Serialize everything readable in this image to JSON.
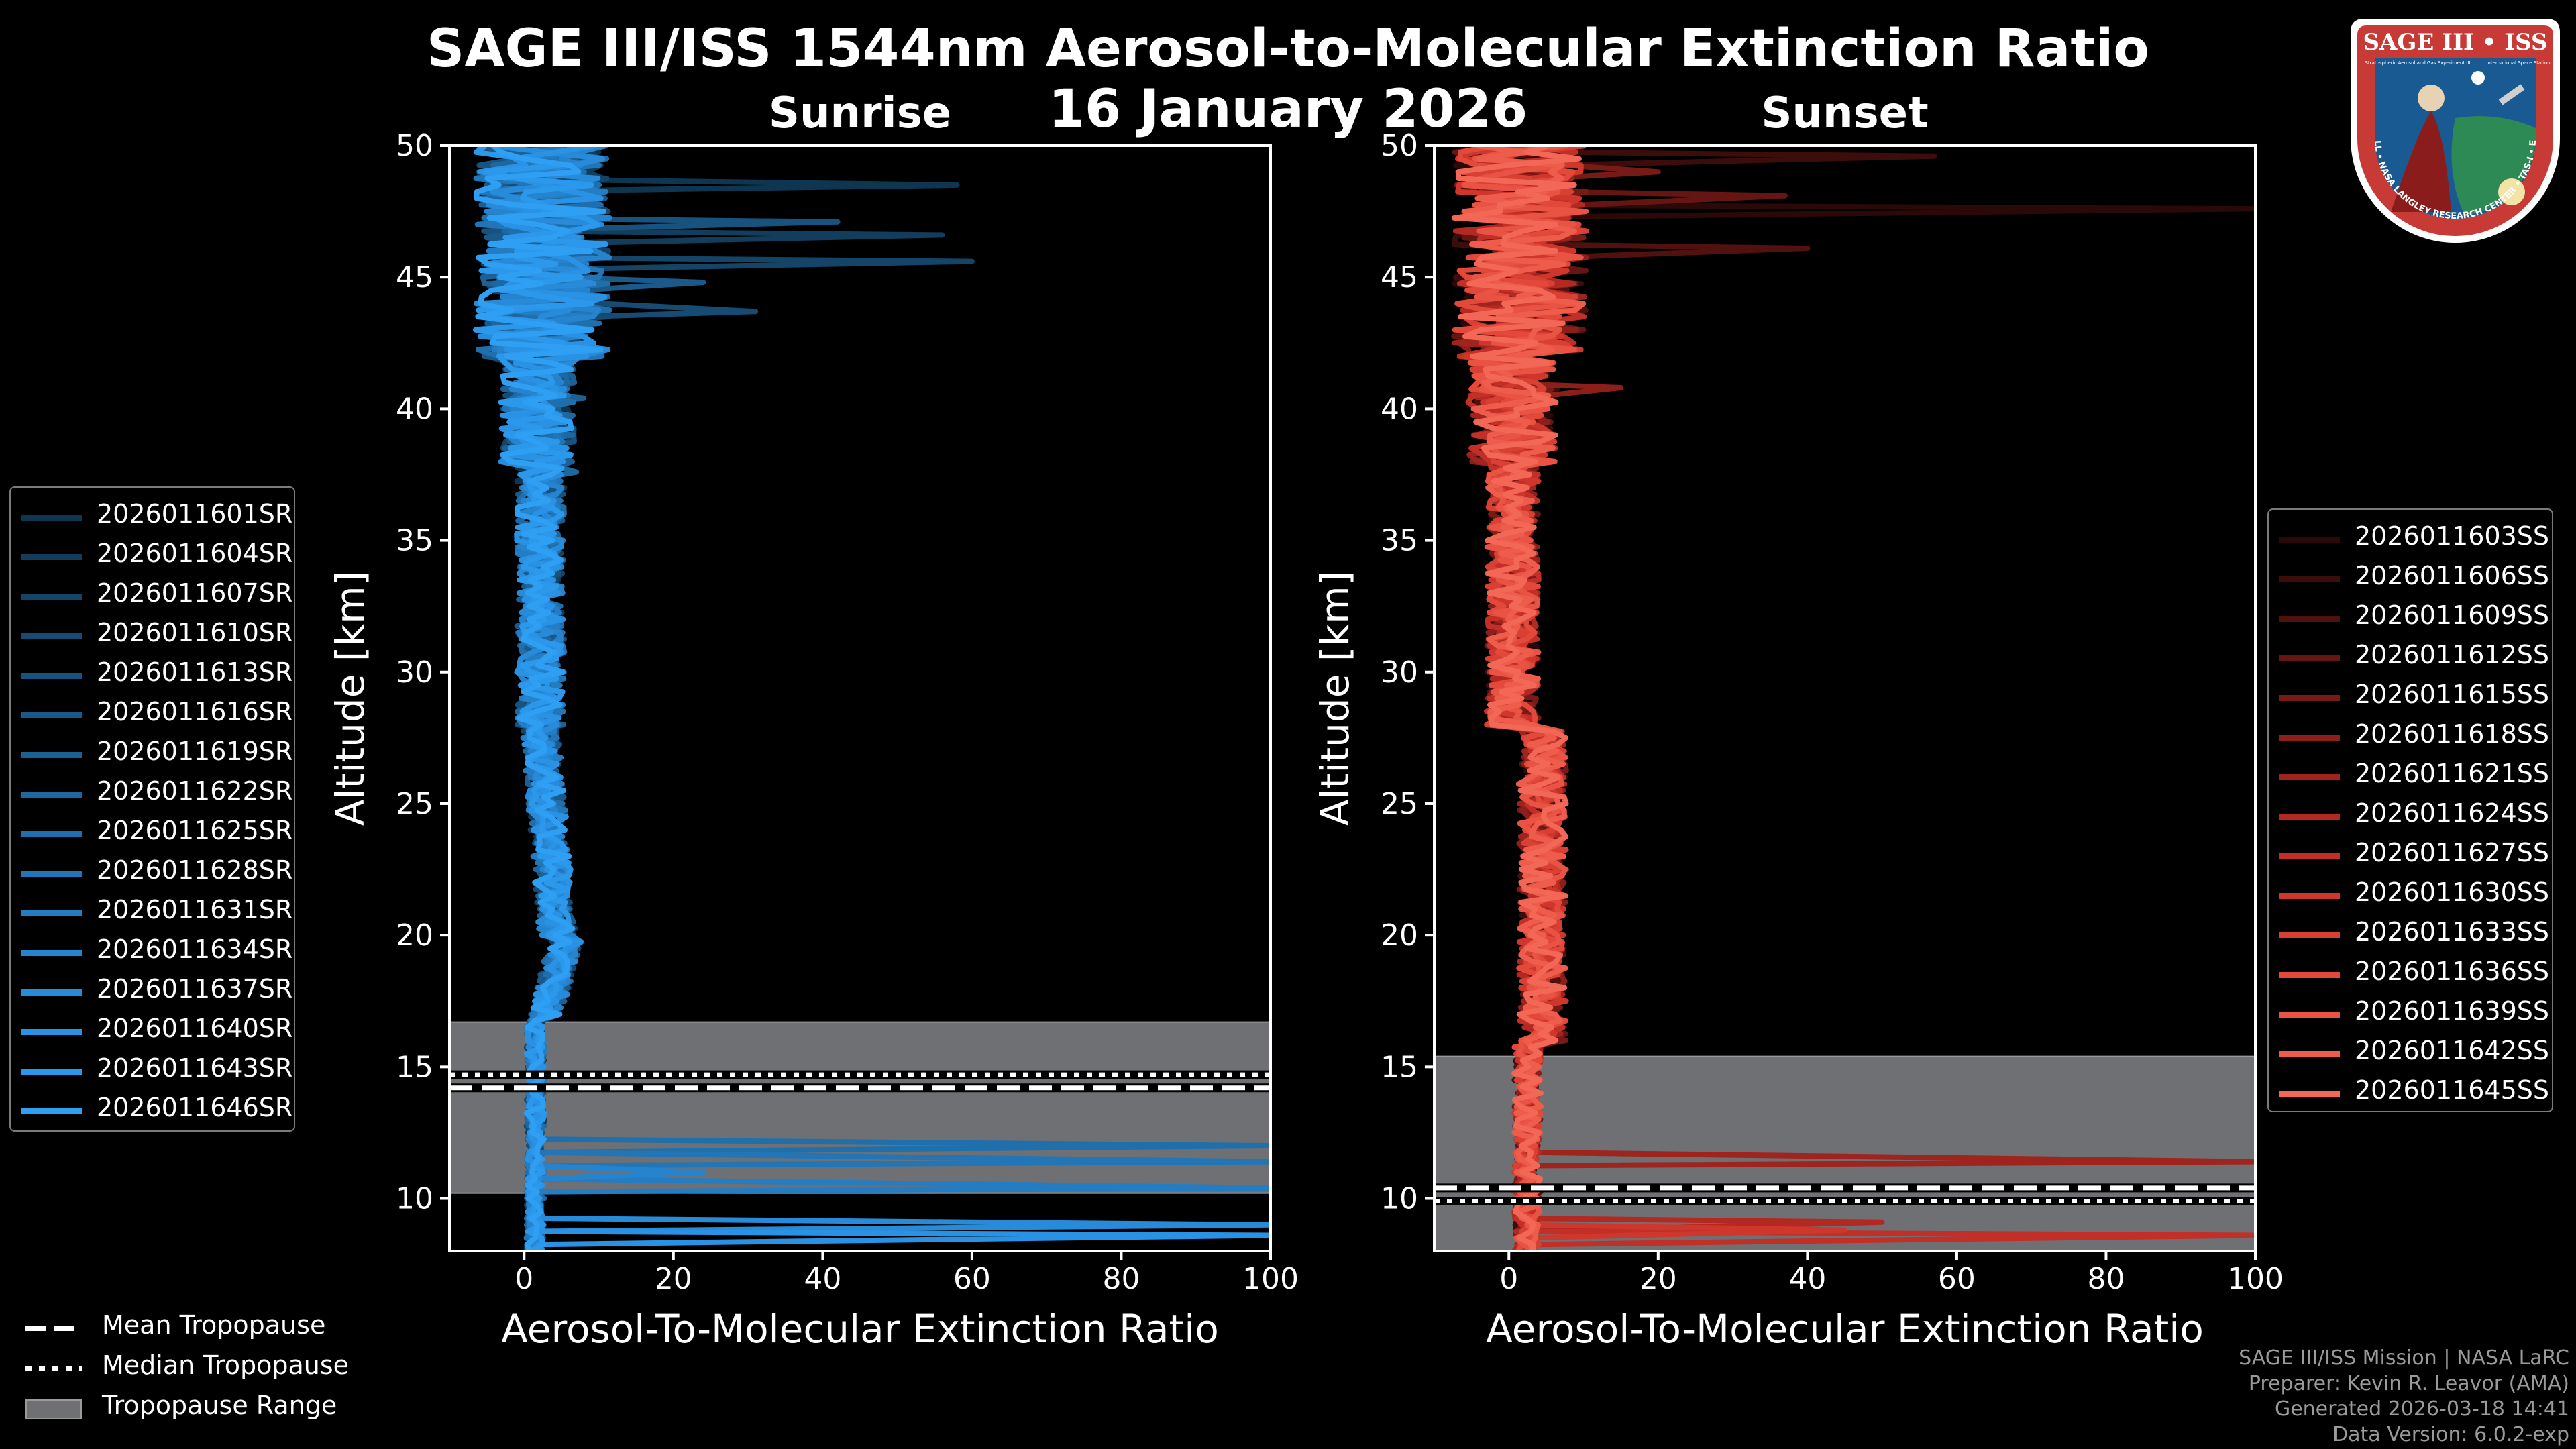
{
  "page": {
    "title": "SAGE III/ISS 1544nm Aerosol-to-Molecular Extinction Ratio",
    "date": "16 January 2026",
    "footer": [
      "SAGE III/ISS Mission | NASA LaRC",
      "Preparer: Kevin R. Leavor (AMA)",
      "Generated 2026-03-18 14:41",
      "Data Version: 6.0.2-exp"
    ]
  },
  "logo": {
    "top_text": "SAGE III • ISS",
    "sub_text": "Stratospheric Aerosol and Gas Experiment III",
    "sub_text_right": "International Space Station",
    "ring_text": "BALL • NASA LANGLEY RESEARCH CENTER • TAS-I • ESA",
    "colors": {
      "ring": "#c73a35",
      "inner": "#1a5a93",
      "border": "#ffffff"
    }
  },
  "colors": {
    "tropopause_range": "#6e7074",
    "sunrise_series": [
      "#0f3651",
      "#123d5d",
      "#144468",
      "#164b73",
      "#18537f",
      "#1a5a8a",
      "#1c6196",
      "#1e68a1",
      "#206fad",
      "#2276b8",
      "#247dc3",
      "#2684cf",
      "#288bda",
      "#2a92e5",
      "#2c98ec",
      "#2e9ff3"
    ],
    "sunset_series": [
      "#2a0907",
      "#3d0d0b",
      "#51110f",
      "#651612",
      "#781a16",
      "#8c1f1a",
      "#9f241e",
      "#b32922",
      "#c22f27",
      "#cf372d",
      "#d94034",
      "#e2493b",
      "#e85343",
      "#ee5d4c",
      "#f26756"
    ]
  },
  "chart_data": [
    {
      "type": "line",
      "panel": "sunrise",
      "title": "Sunrise",
      "xlabel": "Aerosol-To-Molecular Extinction Ratio",
      "ylabel": "Altitude [km]",
      "xlim": [
        -10,
        100
      ],
      "ylim": [
        8,
        50
      ],
      "xticks": [
        0,
        20,
        40,
        60,
        80,
        100
      ],
      "yticks": [
        10,
        15,
        20,
        25,
        30,
        35,
        40,
        45,
        50
      ],
      "tropopause": {
        "range": [
          10.2,
          16.7
        ],
        "mean": 14.2,
        "median": 14.7
      },
      "legend_position": "left",
      "series_names": [
        "2026011601SR",
        "2026011604SR",
        "2026011607SR",
        "2026011610SR",
        "2026011613SR",
        "2026011616SR",
        "2026011619SR",
        "2026011622SR",
        "2026011625SR",
        "2026011628SR",
        "2026011631SR",
        "2026011634SR",
        "2026011637SR",
        "2026011640SR",
        "2026011643SR",
        "2026011646SR"
      ],
      "spikes": [
        {
          "x": 58,
          "y": 48.5
        },
        {
          "x": 56,
          "y": 46.6
        },
        {
          "x": 60,
          "y": 45.6
        },
        {
          "x": 31,
          "y": 43.7
        },
        {
          "x": 42,
          "y": 47.1
        },
        {
          "x": 24,
          "y": 44.8
        },
        {
          "x": 8,
          "y": 40.4
        },
        {
          "x": 7,
          "y": 37.6
        },
        {
          "x": 100,
          "y": 12.0
        },
        {
          "x": 100,
          "y": 11.4
        },
        {
          "x": 100,
          "y": 10.4
        },
        {
          "x": 24,
          "y": 11.0
        },
        {
          "x": 100,
          "y": 9.0
        },
        {
          "x": 100,
          "y": 8.6
        }
      ]
    },
    {
      "type": "line",
      "panel": "sunset",
      "title": "Sunset",
      "xlabel": "Aerosol-To-Molecular Extinction Ratio",
      "ylabel": "Altitude [km]",
      "xlim": [
        -10,
        100
      ],
      "ylim": [
        8,
        50
      ],
      "xticks": [
        0,
        20,
        40,
        60,
        80,
        100
      ],
      "yticks": [
        10,
        15,
        20,
        25,
        30,
        35,
        40,
        45,
        50
      ],
      "tropopause": {
        "range": [
          8.0,
          15.4
        ],
        "mean": 10.4,
        "median": 9.9
      },
      "legend_position": "right",
      "series_names": [
        "2026011603SS",
        "2026011606SS",
        "2026011609SS",
        "2026011612SS",
        "2026011615SS",
        "2026011618SS",
        "2026011621SS",
        "2026011624SS",
        "2026011627SS",
        "2026011630SS",
        "2026011633SS",
        "2026011636SS",
        "2026011639SS",
        "2026011642SS",
        "2026011645SS"
      ],
      "spikes": [
        {
          "x": 100,
          "y": 47.6
        },
        {
          "x": 57,
          "y": 49.6
        },
        {
          "x": 40,
          "y": 46.1
        },
        {
          "x": 37,
          "y": 48.1
        },
        {
          "x": 20,
          "y": 49.0
        },
        {
          "x": 15,
          "y": 40.8
        },
        {
          "x": 100,
          "y": 11.4
        },
        {
          "x": 50,
          "y": 9.1
        },
        {
          "x": 100,
          "y": 8.6
        },
        {
          "x": 45,
          "y": 8.8
        }
      ]
    }
  ],
  "bottom_legend": [
    {
      "style": "dashed",
      "label": "Mean Tropopause"
    },
    {
      "style": "dotted",
      "label": "Median Tropopause"
    },
    {
      "style": "fill",
      "label": "Tropopause Range"
    }
  ]
}
